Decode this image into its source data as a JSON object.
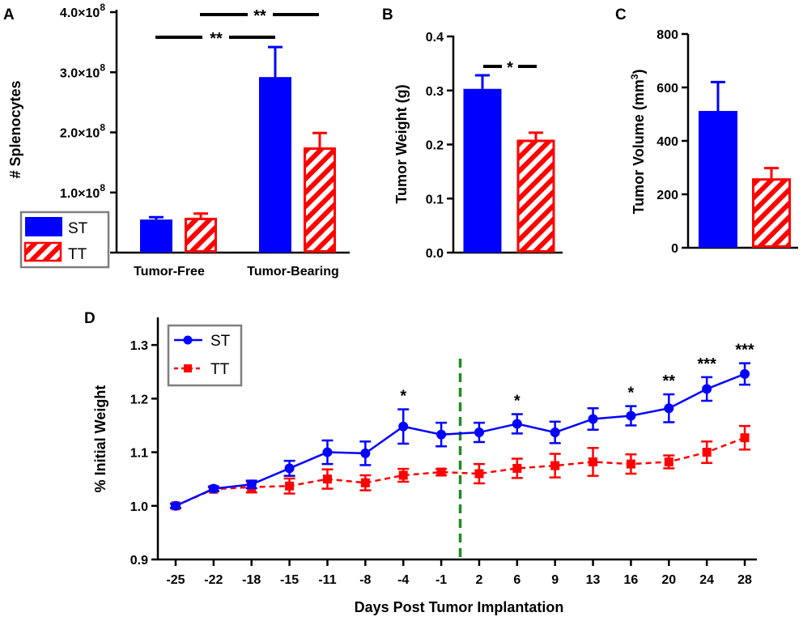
{
  "panels": {
    "a": {
      "letter": "A",
      "chart_data": {
        "type": "bar",
        "ylabel": "# Splenocytes",
        "ylim": [
          0,
          400000000
        ],
        "yticks": [
          {
            "value": 0,
            "mant": "0",
            "exp": ""
          },
          {
            "value": 100000000,
            "mant": "1.0×10",
            "exp": "8"
          },
          {
            "value": 200000000,
            "mant": "2.0×10",
            "exp": "8"
          },
          {
            "value": 300000000,
            "mant": "3.0×10",
            "exp": "8"
          },
          {
            "value": 400000000,
            "mant": "4.0×10",
            "exp": "8"
          }
        ],
        "categories": [
          "Tumor-Free",
          "Tumor-Bearing"
        ],
        "series": [
          {
            "name": "ST",
            "values": [
              55000000,
              292000000
            ],
            "errors": [
              4000000,
              50000000
            ]
          },
          {
            "name": "TT",
            "values": [
              58000000,
              175000000
            ],
            "errors": [
              7000000,
              24000000
            ]
          }
        ],
        "significance": [
          {
            "label": "**",
            "between": "Tumor-Free ST vs Tumor-Bearing ST"
          },
          {
            "label": "**",
            "between": "Tumor-Free TT vs Tumor-Bearing TT"
          }
        ],
        "legend": [
          {
            "name": "ST"
          },
          {
            "name": "TT"
          }
        ]
      }
    },
    "b": {
      "letter": "B",
      "chart_data": {
        "type": "bar",
        "ylabel": "Tumor Weight (g)",
        "ylim": [
          0,
          0.4
        ],
        "yticks": [
          "0.0",
          "0.1",
          "0.2",
          "0.3",
          "0.4"
        ],
        "categories": [
          "ST",
          "TT"
        ],
        "values": [
          0.303,
          0.209
        ],
        "errors": [
          0.025,
          0.013
        ],
        "significance": [
          {
            "label": "*",
            "between": "ST vs TT"
          }
        ]
      }
    },
    "c": {
      "letter": "C",
      "chart_data": {
        "type": "bar",
        "ylabel_main": "Tumor Volume (mm",
        "ylabel_sup": "3",
        "ylabel_end": ")",
        "ylim": [
          0,
          800
        ],
        "yticks": [
          "0",
          "200",
          "400",
          "600",
          "800"
        ],
        "categories": [
          "ST",
          "TT"
        ],
        "values": [
          512,
          260
        ],
        "errors": [
          108,
          38
        ]
      }
    },
    "d": {
      "letter": "D",
      "chart_data": {
        "type": "line",
        "xlabel": "Days Post Tumor Implantation",
        "ylabel": "% Initial Weight",
        "ylim": [
          0.9,
          1.35
        ],
        "yticks": [
          "0.9",
          "1.0",
          "1.1",
          "1.2",
          "1.3"
        ],
        "x": [
          "-25",
          "-22",
          "-18",
          "-15",
          "-11",
          "-8",
          "-4",
          "-1",
          "2",
          "6",
          "9",
          "13",
          "16",
          "20",
          "24",
          "28"
        ],
        "series": [
          {
            "name": "ST",
            "values": [
              1.0,
              1.032,
              1.04,
              1.07,
              1.1,
              1.098,
              1.148,
              1.133,
              1.137,
              1.153,
              1.137,
              1.162,
              1.168,
              1.182,
              1.218,
              1.246
            ],
            "errors": [
              0.004,
              0.004,
              0.007,
              0.014,
              0.022,
              0.022,
              0.032,
              0.022,
              0.018,
              0.018,
              0.02,
              0.02,
              0.018,
              0.026,
              0.022,
              0.02
            ]
          },
          {
            "name": "TT",
            "values": [
              1.0,
              1.031,
              1.035,
              1.037,
              1.05,
              1.043,
              1.057,
              1.063,
              1.06,
              1.07,
              1.075,
              1.082,
              1.078,
              1.082,
              1.1,
              1.127
            ],
            "errors": [
              0.004,
              0.004,
              0.01,
              0.014,
              0.018,
              0.014,
              0.012,
              0.006,
              0.018,
              0.018,
              0.022,
              0.026,
              0.018,
              0.012,
              0.02,
              0.022
            ]
          }
        ],
        "significance": [
          {
            "x": "-4",
            "label": "*"
          },
          {
            "x": "6",
            "label": "*"
          },
          {
            "x": "16",
            "label": "*"
          },
          {
            "x": "20",
            "label": "**"
          },
          {
            "x": "24",
            "label": "***"
          },
          {
            "x": "28",
            "label": "***"
          }
        ],
        "vertical_marker": {
          "between": [
            "-1",
            "2"
          ]
        },
        "legend": [
          {
            "name": "ST"
          },
          {
            "name": "TT"
          }
        ]
      }
    }
  },
  "colors": {
    "st": "#0000ff",
    "tt": "#ff0000",
    "marker_line": "#228b22",
    "legend_border": "#7f7f7f"
  }
}
